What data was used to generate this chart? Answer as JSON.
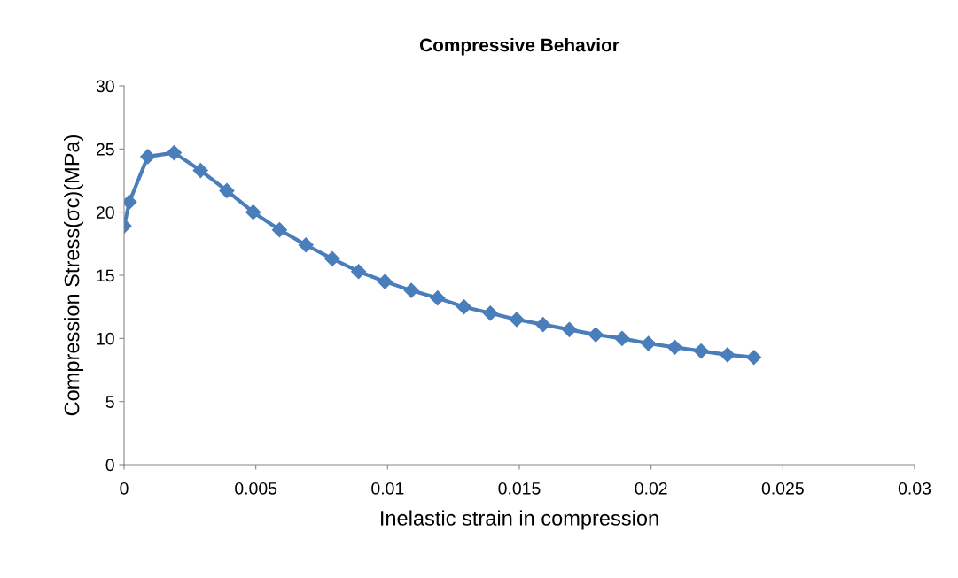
{
  "chart_data": {
    "type": "line",
    "title": "Compressive Behavior",
    "xlabel": "Inelastic strain in compression",
    "ylabel": "Compression Stress(σc)(MPa)",
    "x": [
      0,
      0.0002,
      0.0009,
      0.0019,
      0.0029,
      0.0039,
      0.0049,
      0.0059,
      0.0069,
      0.0079,
      0.0089,
      0.0099,
      0.0109,
      0.0119,
      0.0129,
      0.0139,
      0.0149,
      0.0159,
      0.0169,
      0.0179,
      0.0189,
      0.0199,
      0.0209,
      0.0219,
      0.0229,
      0.0239
    ],
    "series": [
      {
        "color": "#4a7ebb",
        "values": [
          18.9,
          20.8,
          24.4,
          24.7,
          23.3,
          21.7,
          20.0,
          18.6,
          17.4,
          16.3,
          15.3,
          14.5,
          13.8,
          13.2,
          12.5,
          12.0,
          11.5,
          11.1,
          10.7,
          10.3,
          10.0,
          9.6,
          9.3,
          9.0,
          8.7,
          8.5
        ]
      }
    ],
    "xlim": [
      0,
      0.03
    ],
    "xticks": [
      0,
      0.005,
      0.01,
      0.015,
      0.02,
      0.025,
      0.03
    ],
    "ylim": [
      0,
      30
    ],
    "yticks": [
      0,
      5,
      10,
      15,
      20,
      25,
      30
    ],
    "grid": false,
    "legend": false,
    "marker": "diamond",
    "line_style": "solid"
  }
}
